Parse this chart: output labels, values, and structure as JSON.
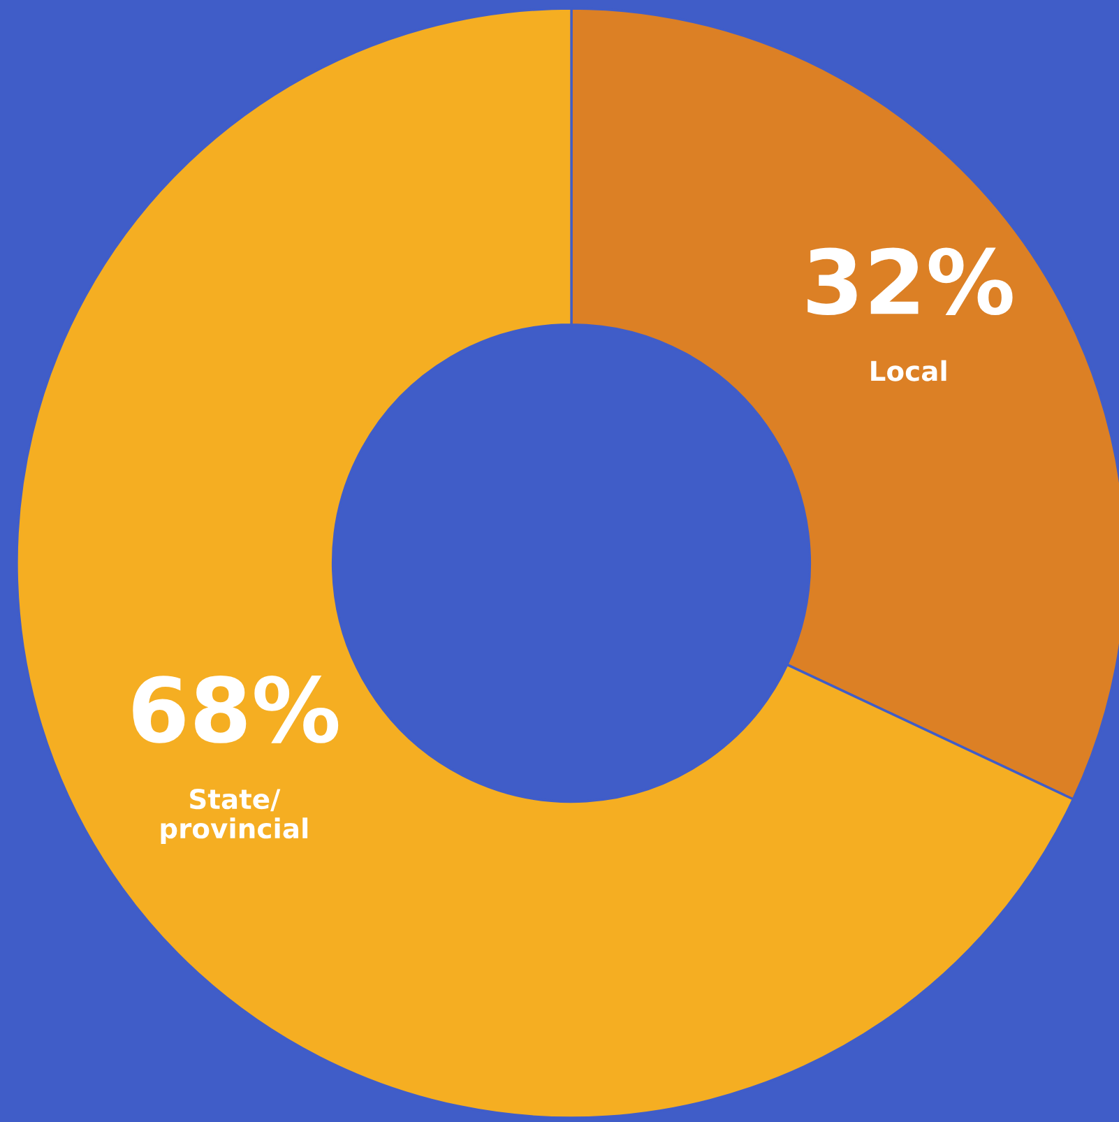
{
  "chart_data": {
    "type": "donut",
    "categories": [
      "Local",
      "State/\nprovincial"
    ],
    "values": [
      32,
      68
    ],
    "colors": [
      "#dc8025",
      "#f5ae22"
    ],
    "value_labels": [
      "32%",
      "68%"
    ]
  }
}
